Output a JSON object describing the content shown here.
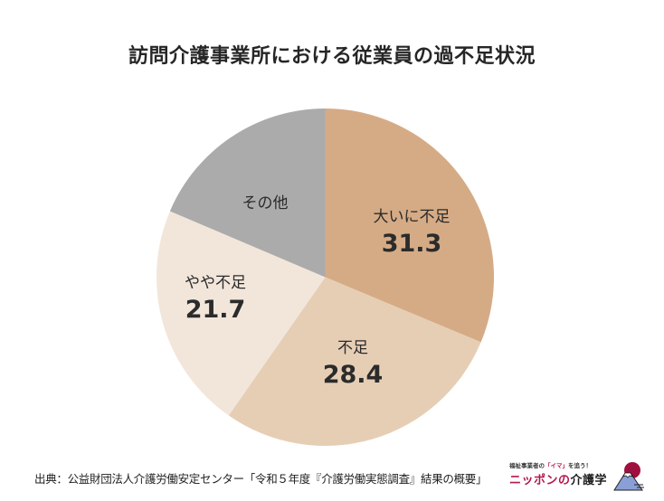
{
  "title": "訪問介護事業所における従業員の過不足状況",
  "chart_data": {
    "type": "pie",
    "title": "訪問介護事業所における従業員の過不足状況",
    "unit": "%",
    "start_angle_deg": 0,
    "direction": "clockwise",
    "center": [
      359.5,
      306.5
    ],
    "radius": 186.5,
    "slices": [
      {
        "label": "大いに不足",
        "value": 31.3,
        "color": "#D5AB86",
        "show_value": true,
        "label_pos": [
          455,
          225
        ]
      },
      {
        "label": "不足",
        "value": 28.4,
        "color": "#E6CEB5",
        "show_value": true,
        "label_pos": [
          390,
          370
        ]
      },
      {
        "label": "やや不足",
        "value": 21.7,
        "color": "#F2E6DB",
        "show_value": true,
        "label_pos": [
          238,
          298
        ]
      },
      {
        "label": "その他",
        "value": 18.6,
        "color": "#ABABAB",
        "show_value": false,
        "label_pos": [
          293,
          210
        ]
      }
    ],
    "legend": null
  },
  "footer": {
    "source": "出典：公益財団法人介護労働安定センター「令和５年度『介護労働実態調査』結果の概要」"
  },
  "logo": {
    "tagline_pre": "福祉事業者の",
    "tagline_highlight": "「イマ」",
    "tagline_post": "を追う！",
    "brand_pink": "ニッポンの",
    "brand_dark": "介護学",
    "colors": {
      "pink": "#B3164F",
      "mountain": "#8A9FD6",
      "sun": "#A0103F"
    }
  }
}
